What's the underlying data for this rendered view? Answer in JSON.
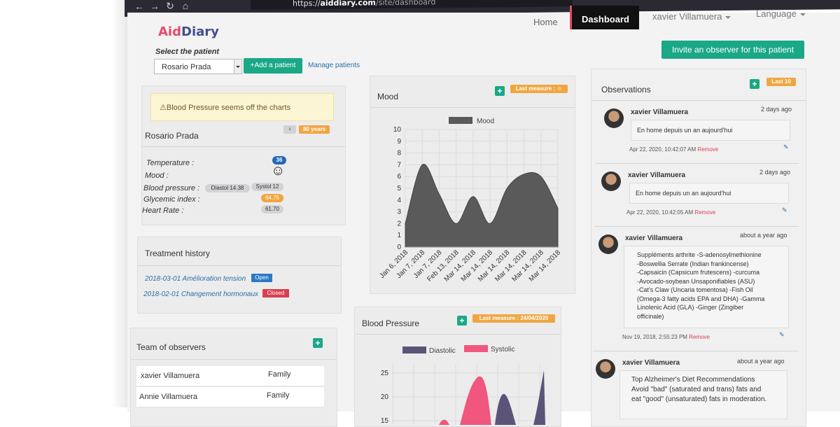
{
  "browser": {
    "url_scheme": "https://",
    "url_domain": "aiddiary.com",
    "url_path": "/site/dashboard"
  },
  "navbar": {
    "logo_part1": "Aid",
    "logo_part2": "Diary",
    "home": "Home",
    "dashboard": "Dashboard",
    "user": "xavier Villamuera",
    "language": "Language"
  },
  "patient_select": {
    "label": "Select the patient",
    "value": "Rosario Prada",
    "add_button": "+Add a patient",
    "manage_link": "Manage patients"
  },
  "invite_button": "Invite an observer for this patient",
  "patient_card": {
    "alert": "Blood Pressure seems off the charts",
    "name": "Rosario Prada",
    "age": "80 years",
    "vitals": {
      "temperature_label": "Temperature :",
      "temperature_value": "36",
      "mood_label": "Mood :",
      "mood_value": "☺",
      "bp_label": "Blood pressure :",
      "diastol": "Diastol 14.38",
      "systol": "Systol 12",
      "glycemic_label": "Glycemic index :",
      "glycemic_value": "64.75",
      "heart_label": "Heart Rate :",
      "heart_value": "61.70"
    }
  },
  "treatment_history": {
    "title": "Treatment history",
    "items": [
      {
        "text": "2018-03-01 Amélioration tension",
        "status": "Open"
      },
      {
        "text": "2018-02-01 Changement hormonaux",
        "status": "Closed"
      }
    ]
  },
  "observers": {
    "title": "Team of observers",
    "rows": [
      {
        "name": "xavier Villamuera",
        "role": "Family"
      },
      {
        "name": "Annie Villamuera",
        "role": "Family"
      }
    ]
  },
  "mood_card": {
    "title": "Mood",
    "badge": "Last measure : ☺"
  },
  "bp_card": {
    "title": "Blood Pressure",
    "badge": "Last measure : 24/04/2020"
  },
  "observations": {
    "title": "Observations",
    "badge": "Last 10",
    "items": [
      {
        "name": "xavier Villamuera",
        "ago": "2 days ago",
        "text": "En home depuis un an aujourd'hui",
        "date": "Apr 22, 2020, 10:42:07 AM",
        "remove": "Remove"
      },
      {
        "name": "xavier Villamuera",
        "ago": "2 days ago",
        "text": "En home depuis un an aujourd'hui",
        "date": "Apr 22, 2020, 10:42:05 AM",
        "remove": "Remove"
      },
      {
        "name": "xavier Villamuera",
        "ago": "about a year ago",
        "text_lines": [
          "Suppléments arthrite -S-adenosylmethionine",
          "-Boswellia Serrate (Indian frankincense)",
          "-Capsaicin (Capsicum frutescens) -curcuma",
          "-Avocado-soybean Unsaponifiables (ASU)",
          "-Cat's Claw (Uncaria tomentosa) -Fish Oil",
          "(Omega-3 fatty acids EPA and DHA) -Gamma",
          "Linolenic Acid (GLA) -Ginger (Zingiber",
          "officinale)"
        ],
        "date": "Nov 19, 2018, 2:55:23 PM",
        "remove": "Remove"
      },
      {
        "name": "xavier Villamuera",
        "ago": "about a year ago",
        "text_lines": [
          "Top Alzheimer's Diet Recommendations",
          "Avoid \"bad\" (saturated and trans) fats and",
          "eat \"good\" (unsaturated) fats in moderation."
        ]
      }
    ]
  },
  "chart_data": [
    {
      "type": "area",
      "legend": [
        "Mood"
      ],
      "categories": [
        "Jan 6, 2018",
        "Jan 7, 2018",
        "Jan 7, 2018",
        "Feb 13, 2018",
        "Mar 14, 2018",
        "Mar 14, 2018",
        "Mar 14, 2018",
        "Mar 14, 2018",
        "Mar 14, 2018",
        "Mar 14, 2018"
      ],
      "series": [
        {
          "name": "Mood",
          "values": [
            2,
            7,
            4.5,
            2,
            4.3,
            2,
            5,
            6.2,
            6,
            3.3
          ]
        }
      ],
      "ylim": [
        0,
        10
      ],
      "yticks": [
        "0",
        "1",
        "2",
        "3",
        "4",
        "5",
        "6",
        "7",
        "8",
        "9",
        "10"
      ],
      "color": "#5a5a5a"
    },
    {
      "type": "area",
      "legend": [
        "Diastolic",
        "Systolic"
      ],
      "yticks": [
        "15",
        "20",
        "25"
      ],
      "series": [
        {
          "name": "Diastolic",
          "color": "#5b5478"
        },
        {
          "name": "Systolic",
          "color": "#f0567e"
        }
      ]
    }
  ]
}
